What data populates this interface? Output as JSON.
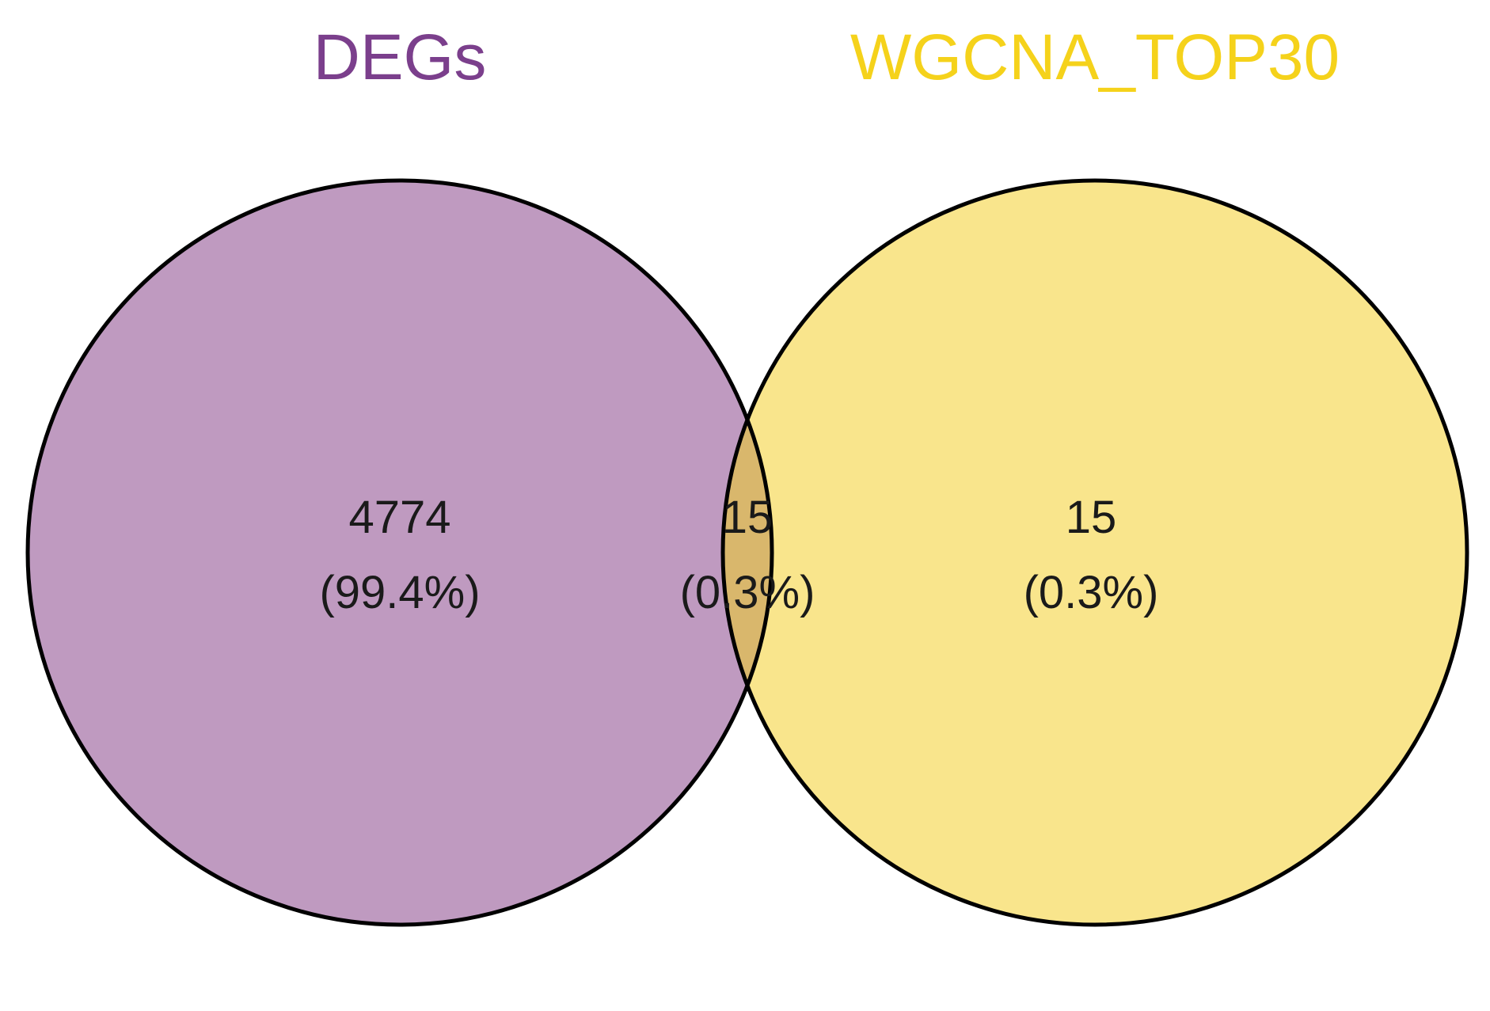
{
  "sets": [
    {
      "name": "DEGs",
      "color": "#bf9ac0",
      "label_color": "#7b3f8c"
    },
    {
      "name": "WGCNA_TOP30",
      "color": "#f9e58c",
      "label_color": "#f5d21b"
    }
  ],
  "overlap_color": "#d9b76c",
  "outline_color": "#000000",
  "regions": [
    {
      "id": "degs-only",
      "count": "4774",
      "percent": "(99.4%)"
    },
    {
      "id": "intersection",
      "count": "15",
      "percent": "(0.3%)"
    },
    {
      "id": "wgcna-only",
      "count": "15",
      "percent": "(0.3%)"
    }
  ]
}
